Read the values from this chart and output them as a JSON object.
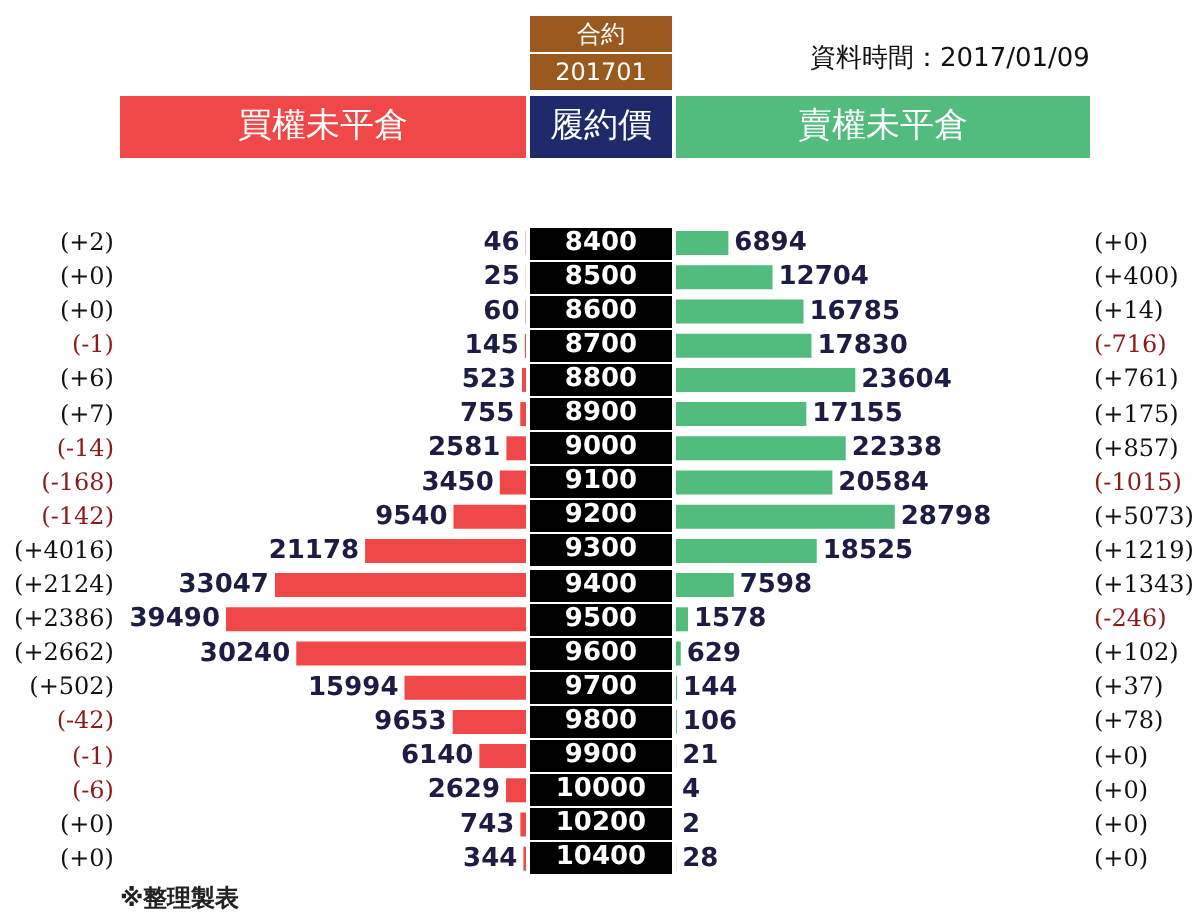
{
  "chart_data": [
    {
      "type": "bar",
      "orientation": "horizontal",
      "tick_labels": false,
      "data_labels": true,
      "categories": [
        "8400",
        "8500",
        "8600",
        "8700",
        "8800",
        "8900",
        "9000",
        "9100",
        "9200",
        "9300",
        "9400",
        "9500",
        "9600",
        "9700",
        "9800",
        "9900",
        "10000",
        "10200",
        "10400"
      ],
      "series": [
        {
          "name": "買權未平倉",
          "color": "#f04848",
          "values": [
            46,
            25,
            60,
            145,
            523,
            755,
            2581,
            3450,
            9540,
            21178,
            33047,
            39490,
            30240,
            15994,
            9653,
            6140,
            2629,
            743,
            344
          ]
        }
      ],
      "annotations": [
        "(+2)",
        "(+0)",
        "(+0)",
        "(-1)",
        "(+6)",
        "(+7)",
        "(-14)",
        "(-168)",
        "(-142)",
        "(+4016)",
        "(+2124)",
        "(+2386)",
        "(+2662)",
        "(+502)",
        "(-42)",
        "(-1)",
        "(-6)",
        "(+0)",
        "(+0)",
        "※整理製表"
      ]
    },
    {
      "type": "bar",
      "orientation": "horizontal",
      "data_labels": true,
      "title": "資料時間：2017/01/09",
      "ylabel": "履約價",
      "categories": [
        "8400",
        "8500",
        "8600",
        "8700",
        "8800",
        "8900",
        "9000",
        "9100",
        "9200",
        "9300",
        "9400",
        "9500",
        "9600",
        "9700",
        "9800",
        "9900",
        "10000",
        "10200",
        "10400"
      ],
      "series": [
        {
          "name": "賣權未平倉",
          "color": "#52bb7e",
          "values": [
            6894,
            12704,
            16785,
            17830,
            23604,
            17155,
            22338,
            20584,
            28798,
            18525,
            7598,
            1578,
            629,
            144,
            106,
            21,
            4,
            2,
            28
          ]
        }
      ],
      "annotations": [
        "合約",
        "201701",
        "(+0)",
        "(+400)",
        "(+14)",
        "(-716)",
        "(+761)",
        "(+175)",
        "(+857)",
        "(-1015)",
        "(+5073)",
        "(+1219)",
        "(+1343)",
        "(-246)",
        "(+102)",
        "(+37)",
        "(+78)",
        "(+0)",
        "(+0)",
        "(+0)",
        "(+0)"
      ]
    }
  ]
}
